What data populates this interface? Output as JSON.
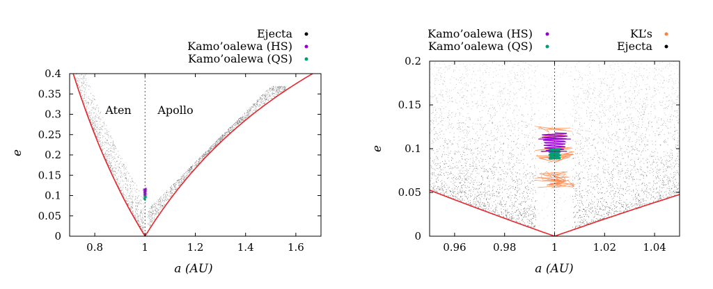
{
  "chart_data": [
    {
      "type": "scatter",
      "xlabel": "a (AU)",
      "ylabel": "e",
      "xlim": [
        0.7,
        1.7
      ],
      "ylim": [
        0,
        0.4
      ],
      "xticks": [
        "0.8",
        "1",
        "1.2",
        "1.4",
        "1.6"
      ],
      "yticks": [
        "0",
        "0.05",
        "0.1",
        "0.15",
        "0.2",
        "0.25",
        "0.3",
        "0.35",
        "0.4"
      ],
      "regions": [
        "Aten",
        "Apollo"
      ],
      "legend_placement": "top-right, above plot",
      "legend": [
        {
          "label": "Ejecta",
          "color": "#000000"
        },
        {
          "label": "Kamo’oalewa (HS)",
          "color": "#9400d3"
        },
        {
          "label": "Kamo’oalewa (QS)",
          "color": "#009e73"
        }
      ],
      "reference_line_x": 1,
      "boundary_curves": "e = |1 - a|/a (q = 1 AU and Q = 1 AU), red",
      "grid": false
    },
    {
      "type": "scatter",
      "xlabel": "a (AU)",
      "ylabel": "e",
      "xlim": [
        0.95,
        1.05
      ],
      "ylim": [
        0,
        0.2
      ],
      "xticks": [
        "0.96",
        "0.98",
        "1",
        "1.02",
        "1.04"
      ],
      "yticks": [
        "0",
        "0.05",
        "0.1",
        "0.15",
        "0.2"
      ],
      "legend_placement": "top, above plot",
      "legend": [
        {
          "label": "Kamo’oalewa (HS)",
          "color": "#9400d3"
        },
        {
          "label": "KL’s",
          "color": "#ff7f3f"
        },
        {
          "label": "Kamo’oalewa (QS)",
          "color": "#009e73"
        },
        {
          "label": "Ejecta",
          "color": "#000000"
        }
      ],
      "reference_line_x": 1,
      "boundary_curves": "e = |1 - a|/a, red",
      "grid": false
    }
  ]
}
